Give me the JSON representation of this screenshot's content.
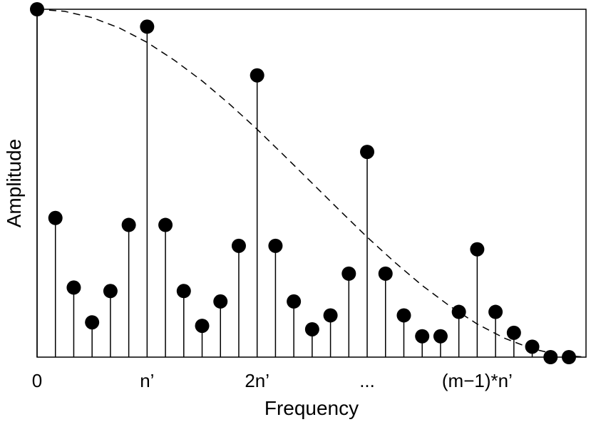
{
  "chart_data": {
    "type": "stem",
    "title": "",
    "xlabel": "Frequency",
    "ylabel": "Amplitude",
    "xlim": [
      0,
      29
    ],
    "ylim": [
      0,
      1
    ],
    "grid": false,
    "x_ticks": [
      {
        "x": 0,
        "label": "0"
      },
      {
        "x": 6,
        "label": "n’"
      },
      {
        "x": 12,
        "label": "2n’"
      },
      {
        "x": 18,
        "label": "..."
      },
      {
        "x": 24,
        "label": "(m−1)*n’"
      }
    ],
    "series": [
      {
        "style": "stem",
        "marker": "filled-circle",
        "color": "#000000",
        "x": [
          0,
          1,
          2,
          3,
          4,
          5,
          6,
          7,
          8,
          9,
          10,
          11,
          12,
          13,
          14,
          15,
          16,
          17,
          18,
          19,
          20,
          21,
          22,
          23,
          24,
          25,
          26,
          27,
          28,
          29
        ],
        "values": [
          1.0,
          0.4,
          0.2,
          0.1,
          0.19,
          0.38,
          0.95,
          0.38,
          0.19,
          0.09,
          0.16,
          0.32,
          0.81,
          0.32,
          0.16,
          0.08,
          0.12,
          0.24,
          0.59,
          0.24,
          0.12,
          0.06,
          0.06,
          0.13,
          0.31,
          0.13,
          0.07,
          0.03,
          0.0,
          0.0
        ]
      },
      {
        "style": "dashed-line",
        "color": "#000000",
        "x": [
          0,
          1.5,
          3,
          4.5,
          6,
          7.5,
          9,
          10.5,
          12,
          13.5,
          15,
          16.5,
          18,
          19.5,
          21,
          22.5,
          24,
          25.5,
          27,
          28.5,
          30
        ],
        "values": [
          1.0,
          0.994,
          0.976,
          0.946,
          0.905,
          0.853,
          0.794,
          0.727,
          0.655,
          0.578,
          0.5,
          0.422,
          0.345,
          0.273,
          0.206,
          0.147,
          0.095,
          0.054,
          0.024,
          0.006,
          0.0
        ]
      }
    ]
  }
}
